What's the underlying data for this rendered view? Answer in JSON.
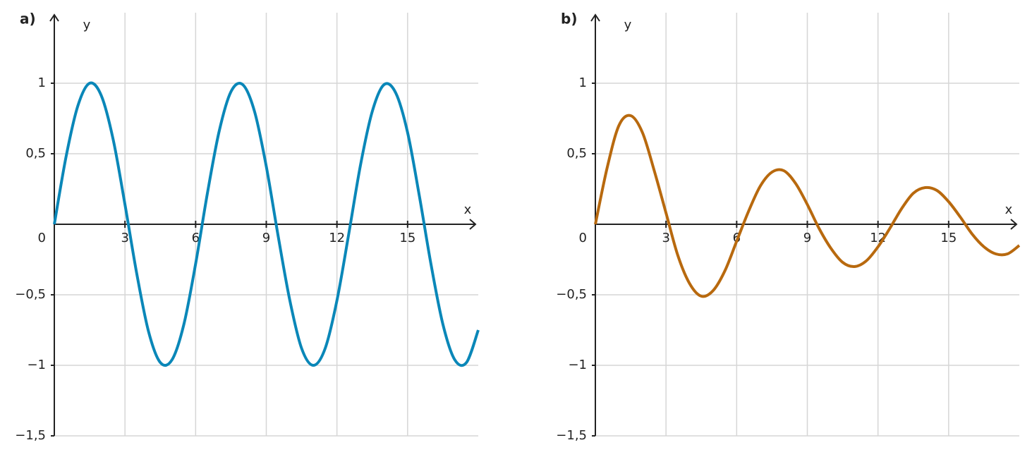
{
  "chart_data": [
    {
      "type": "line",
      "title": "a)",
      "x_label": "x",
      "y_label": "y",
      "x": [
        0,
        0.5,
        1,
        1.5,
        2,
        2.5,
        3,
        3.5,
        4,
        4.5,
        5,
        5.5,
        6,
        6.5,
        7,
        7.5,
        8,
        8.5,
        9,
        9.5,
        10,
        10.5,
        11,
        11.5,
        12,
        12.5,
        13,
        13.5,
        14,
        14.5,
        15,
        15.5,
        16,
        16.5,
        17,
        17.5,
        18
      ],
      "values": [
        0,
        0.48,
        0.84,
        1.0,
        0.91,
        0.6,
        0.14,
        -0.35,
        -0.76,
        -0.98,
        -0.96,
        -0.71,
        -0.28,
        0.22,
        0.66,
        0.94,
        0.99,
        0.8,
        0.41,
        -0.08,
        -0.54,
        -0.88,
        -1.0,
        -0.88,
        -0.54,
        -0.07,
        0.42,
        0.8,
        0.99,
        0.93,
        0.65,
        0.2,
        -0.29,
        -0.71,
        -0.96,
        -0.98,
        -0.75
      ],
      "color": "#0a87b8",
      "xlim": [
        0,
        18
      ],
      "xticks": [
        3,
        6,
        9,
        12,
        15
      ],
      "ylim": [
        -1.5,
        1.5
      ],
      "yticks": [
        {
          "value": -1.5,
          "label": "−1,5"
        },
        {
          "value": -1,
          "label": "−1"
        },
        {
          "value": -0.5,
          "label": "−0,5"
        },
        0,
        {
          "value": 0.5,
          "label": "0,5"
        },
        1
      ],
      "grid": true
    },
    {
      "type": "line",
      "title": "b)",
      "x_label": "x",
      "y_label": "y",
      "x": [
        0,
        0.5,
        1,
        1.5,
        2,
        2.5,
        3,
        3.5,
        4,
        4.5,
        5,
        5.5,
        6,
        6.5,
        7,
        7.5,
        8,
        8.5,
        9,
        9.5,
        10,
        10.5,
        11,
        11.5,
        12,
        12.5,
        13,
        13.5,
        14,
        14.5,
        15,
        15.5,
        16,
        16.5,
        17,
        17.5,
        18
      ],
      "values": [
        0,
        0.4,
        0.7,
        0.77,
        0.65,
        0.38,
        0.08,
        -0.22,
        -0.42,
        -0.51,
        -0.47,
        -0.33,
        -0.12,
        0.09,
        0.27,
        0.37,
        0.38,
        0.29,
        0.14,
        -0.03,
        -0.17,
        -0.27,
        -0.3,
        -0.26,
        -0.16,
        -0.03,
        0.11,
        0.22,
        0.26,
        0.24,
        0.16,
        0.05,
        -0.07,
        -0.16,
        -0.21,
        -0.21,
        -0.15
      ],
      "color": "#b8690e",
      "xlim": [
        0,
        18
      ],
      "xticks": [
        3,
        6,
        9,
        12,
        15
      ],
      "ylim": [
        -1.5,
        1.5
      ],
      "yticks": [
        {
          "value": -1.5,
          "label": "−1,5"
        },
        {
          "value": -1,
          "label": "−1"
        },
        {
          "value": -0.5,
          "label": "−0,5"
        },
        0,
        {
          "value": 0.5,
          "label": "0,5"
        },
        1
      ],
      "grid": true
    }
  ]
}
